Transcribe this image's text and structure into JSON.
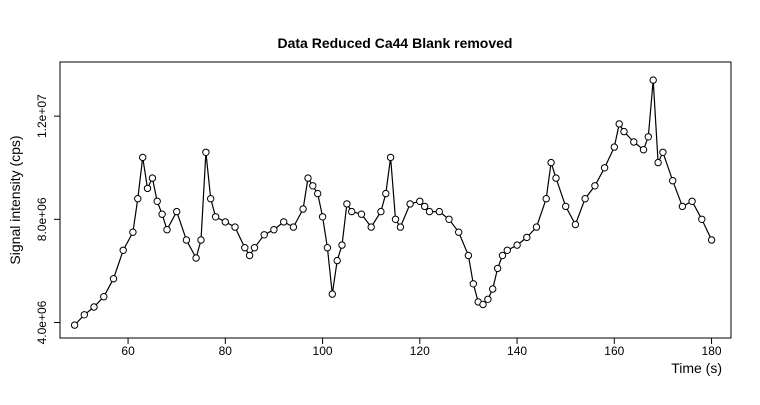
{
  "chart_data": {
    "type": "line",
    "title": "Data Reduced Ca44 Blank removed",
    "xlabel": "Time (s)",
    "ylabel": "Signal intensity (cps)",
    "xlim": [
      46,
      184
    ],
    "ylim": [
      3400000,
      14100000
    ],
    "x_ticks": [
      60,
      80,
      100,
      120,
      140,
      160,
      180
    ],
    "x_tick_labels": [
      "60",
      "80",
      "100",
      "120",
      "140",
      "160",
      "180"
    ],
    "y_ticks": [
      4000000,
      8000000,
      12000000
    ],
    "y_tick_labels": [
      "4.0e+06",
      "8.0e+06",
      "1.2e+07"
    ],
    "grid": false,
    "markers": "open-circle",
    "line_color": "#000000",
    "x": [
      49,
      51,
      53,
      55,
      57,
      59,
      61,
      62,
      63,
      64,
      65,
      66,
      67,
      68,
      70,
      72,
      74,
      75,
      76,
      77,
      78,
      80,
      82,
      84,
      85,
      86,
      88,
      90,
      92,
      94,
      96,
      97,
      98,
      99,
      100,
      101,
      102,
      103,
      104,
      105,
      106,
      108,
      110,
      112,
      113,
      114,
      115,
      116,
      118,
      120,
      121,
      122,
      124,
      126,
      128,
      130,
      131,
      132,
      133,
      134,
      135,
      136,
      137,
      138,
      140,
      142,
      144,
      146,
      147,
      148,
      150,
      152,
      154,
      156,
      158,
      160,
      161,
      162,
      164,
      166,
      167,
      168,
      169,
      170,
      172,
      174,
      176,
      178,
      180
    ],
    "y": [
      3900000,
      4300000,
      4600000,
      5000000,
      5700000,
      6800000,
      7500000,
      8800000,
      10400000,
      9200000,
      9600000,
      8700000,
      8200000,
      7600000,
      8300000,
      7200000,
      6500000,
      7200000,
      10600000,
      8800000,
      8100000,
      7900000,
      7700000,
      6900000,
      6600000,
      6900000,
      7400000,
      7600000,
      7900000,
      7700000,
      8400000,
      9600000,
      9300000,
      9000000,
      8100000,
      6900000,
      5100000,
      6400000,
      7000000,
      8600000,
      8300000,
      8200000,
      7700000,
      8300000,
      9000000,
      10400000,
      8000000,
      7700000,
      8600000,
      8700000,
      8500000,
      8300000,
      8300000,
      8000000,
      7500000,
      6600000,
      5500000,
      4800000,
      4700000,
      4900000,
      5300000,
      6100000,
      6600000,
      6800000,
      7000000,
      7300000,
      7700000,
      8800000,
      10200000,
      9600000,
      8500000,
      7800000,
      8800000,
      9300000,
      10000000,
      10800000,
      11700000,
      11400000,
      11000000,
      10700000,
      11200000,
      13400000,
      10200000,
      10600000,
      9500000,
      8500000,
      8700000,
      8000000,
      7200000
    ]
  }
}
